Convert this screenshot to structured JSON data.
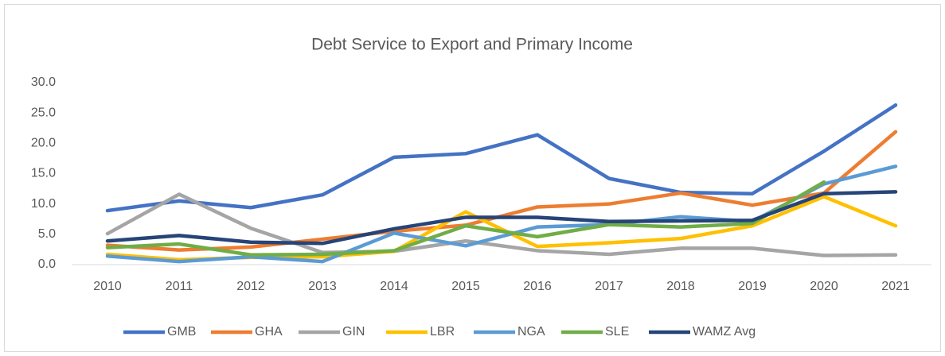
{
  "chart_data": {
    "type": "line",
    "title": "Debt Service to Export and Primary Income",
    "categories": [
      "2010",
      "2011",
      "2012",
      "2013",
      "2014",
      "2015",
      "2016",
      "2017",
      "2018",
      "2019",
      "2020",
      "2021"
    ],
    "ylim": [
      0,
      30
    ],
    "yticks": [
      {
        "value": 0,
        "label": "0.0"
      },
      {
        "value": 5,
        "label": "5.0"
      },
      {
        "value": 10,
        "label": "10.0"
      },
      {
        "value": 15,
        "label": "15.0"
      },
      {
        "value": 20,
        "label": "20.0"
      },
      {
        "value": 25,
        "label": "25.0"
      },
      {
        "value": 30,
        "label": "30.0"
      }
    ],
    "grid": false,
    "legend": "bottom",
    "series": [
      {
        "name": "GMB",
        "color": "#4472c4",
        "values": [
          8.9,
          10.5,
          9.4,
          11.5,
          17.7,
          18.3,
          21.4,
          14.2,
          11.9,
          11.7,
          18.7,
          26.3
        ]
      },
      {
        "name": "GHA",
        "color": "#ed7d31",
        "values": [
          3.2,
          2.4,
          2.9,
          4.2,
          5.5,
          6.5,
          9.5,
          10.0,
          11.8,
          9.8,
          11.8,
          21.9
        ]
      },
      {
        "name": "GIN",
        "color": "#a5a5a5",
        "values": [
          5.1,
          11.6,
          6.0,
          2.0,
          2.2,
          3.9,
          2.3,
          1.7,
          2.7,
          2.7,
          1.5,
          1.6
        ]
      },
      {
        "name": "LBR",
        "color": "#ffc000",
        "values": [
          1.7,
          0.8,
          1.2,
          1.3,
          2.2,
          8.7,
          3.0,
          3.6,
          4.3,
          6.4,
          11.2,
          6.4
        ]
      },
      {
        "name": "NGA",
        "color": "#5b9bd5",
        "values": [
          1.4,
          0.5,
          1.3,
          0.5,
          5.2,
          3.1,
          6.2,
          6.6,
          7.9,
          7.1,
          13.3,
          16.2
        ]
      },
      {
        "name": "SLE",
        "color": "#70ad47",
        "values": [
          2.8,
          3.4,
          1.6,
          1.7,
          2.3,
          6.4,
          4.6,
          6.6,
          6.2,
          6.8,
          13.6,
          null
        ]
      },
      {
        "name": "WAMZ Avg",
        "color": "#264478",
        "values": [
          3.9,
          4.8,
          3.7,
          3.5,
          5.9,
          7.8,
          7.8,
          7.1,
          7.2,
          7.3,
          11.7,
          12.0
        ]
      }
    ]
  }
}
